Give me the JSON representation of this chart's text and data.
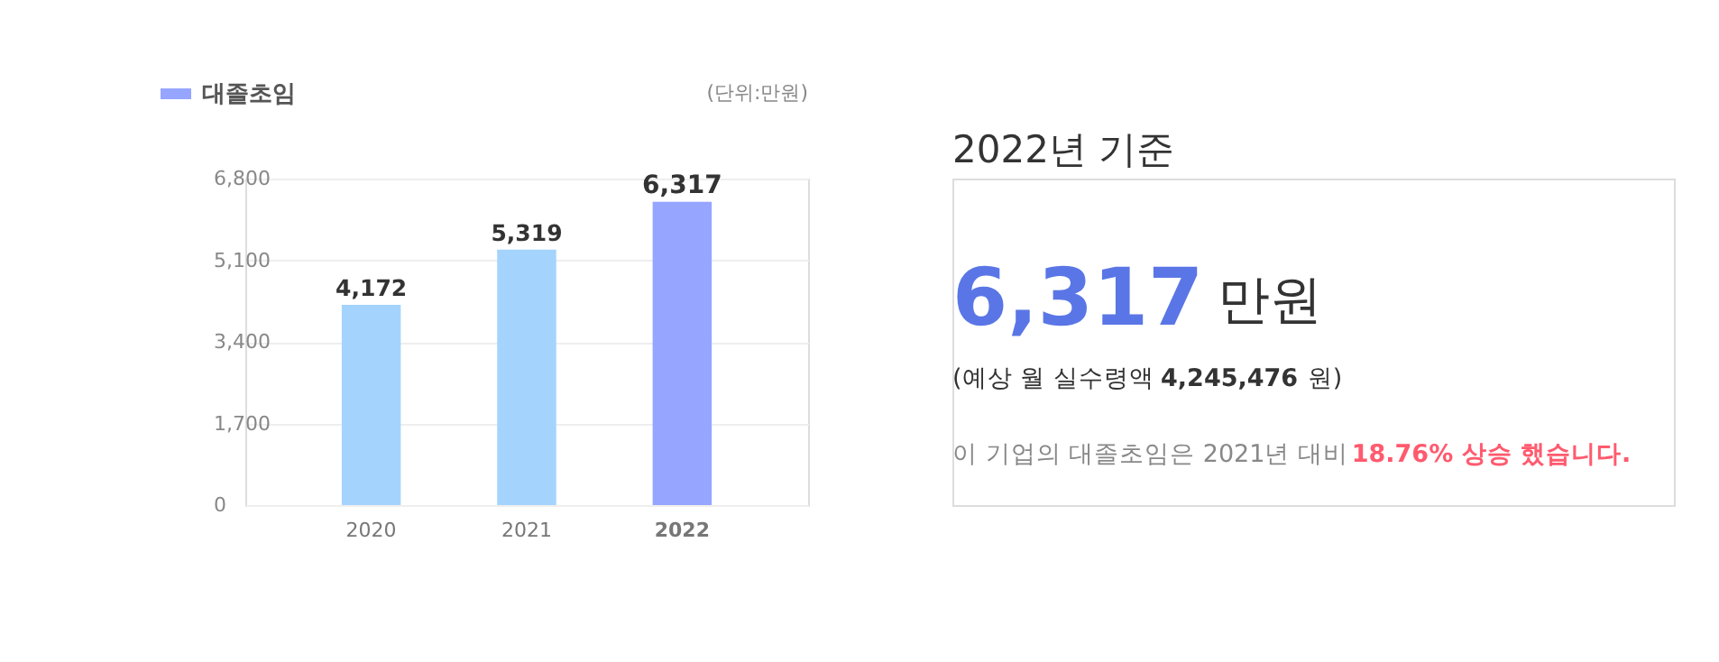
{
  "chart_data": [
    {
      "type": "bar",
      "categories": [
        "2020",
        "2021",
        "2022"
      ],
      "series": [
        {
          "name": "대졸초임",
          "color": "#96a5ff",
          "colors": [
            "#a4d4fd",
            "#a4d4fd",
            "#96a5ff"
          ],
          "values": [
            4172,
            5319,
            6317
          ],
          "value_labels": [
            "4,172",
            "5,319",
            "6,317"
          ]
        }
      ],
      "ylim": [
        0,
        6800
      ],
      "yticks": [
        0,
        {
          "value": 1700,
          "label": "1,700"
        },
        {
          "value": 3400,
          "label": "3,400"
        },
        {
          "value": 5100,
          "label": "5,100"
        },
        {
          "value": 6800,
          "label": "6,800"
        }
      ],
      "grid": "y",
      "legend": "top left",
      "annotations": [
        "(단위:만원)"
      ]
    },
    {
      "type": "other",
      "title": "2022년 기준",
      "annotations": [
        "6,317",
        "만원",
        "(예상 월 실수령액 ",
        "4,245,476",
        "원)",
        "이 기업의 대졸초임은 2021년 대비 ",
        "18.76% 상승 했습니다."
      ]
    }
  ]
}
